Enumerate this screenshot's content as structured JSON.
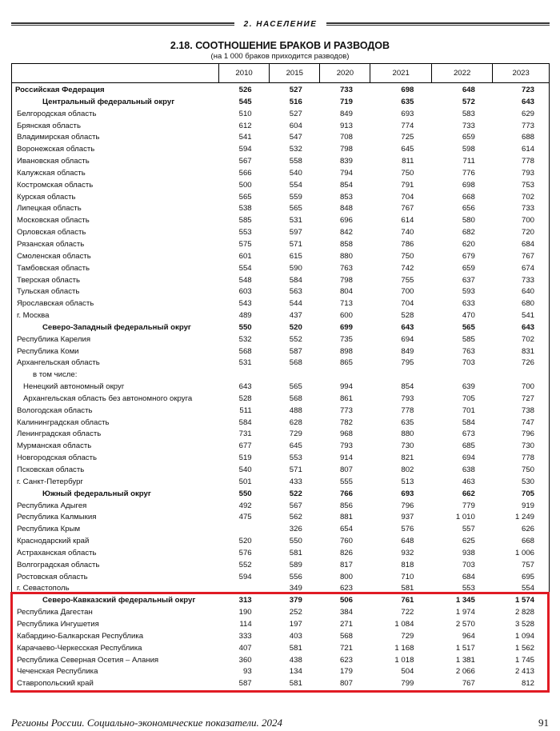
{
  "section": "2. НАСЕЛЕНИЕ",
  "title": "2.18. СООТНОШЕНИЕ БРАКОВ И РАЗВОДОВ",
  "subtitle": "(на 1 000 браков приходится разводов)",
  "columns": [
    "2010",
    "2015",
    "2020",
    "2021",
    "2022",
    "2023"
  ],
  "highlight_color": "#e01b24",
  "rows": [
    {
      "type": "total",
      "label": "Российская Федерация",
      "values": [
        "526",
        "527",
        "733",
        "698",
        "648",
        "723"
      ]
    },
    {
      "type": "district",
      "label": "Центральный федеральный округ",
      "values": [
        "545",
        "516",
        "719",
        "635",
        "572",
        "643"
      ]
    },
    {
      "type": "region",
      "label": "Белгородская область",
      "values": [
        "510",
        "527",
        "849",
        "693",
        "583",
        "629"
      ]
    },
    {
      "type": "region",
      "label": "Брянская область",
      "values": [
        "612",
        "604",
        "913",
        "774",
        "733",
        "773"
      ]
    },
    {
      "type": "region",
      "label": "Владимирская область",
      "values": [
        "541",
        "547",
        "708",
        "725",
        "659",
        "688"
      ]
    },
    {
      "type": "region",
      "label": "Воронежская область",
      "values": [
        "594",
        "532",
        "798",
        "645",
        "598",
        "614"
      ]
    },
    {
      "type": "region",
      "label": "Ивановская область",
      "values": [
        "567",
        "558",
        "839",
        "811",
        "711",
        "778"
      ]
    },
    {
      "type": "region",
      "label": "Калужская область",
      "values": [
        "566",
        "540",
        "794",
        "750",
        "776",
        "793"
      ]
    },
    {
      "type": "region",
      "label": "Костромская область",
      "values": [
        "500",
        "554",
        "854",
        "791",
        "698",
        "753"
      ]
    },
    {
      "type": "region",
      "label": "Курская область",
      "values": [
        "565",
        "559",
        "853",
        "704",
        "668",
        "702"
      ]
    },
    {
      "type": "region",
      "label": "Липецкая область",
      "values": [
        "538",
        "565",
        "848",
        "767",
        "656",
        "733"
      ]
    },
    {
      "type": "region",
      "label": "Московская область",
      "values": [
        "585",
        "531",
        "696",
        "614",
        "580",
        "700"
      ]
    },
    {
      "type": "region",
      "label": "Орловская область",
      "values": [
        "553",
        "597",
        "842",
        "740",
        "682",
        "720"
      ]
    },
    {
      "type": "region",
      "label": "Рязанская область",
      "values": [
        "575",
        "571",
        "858",
        "786",
        "620",
        "684"
      ]
    },
    {
      "type": "region",
      "label": "Смоленская область",
      "values": [
        "601",
        "615",
        "880",
        "750",
        "679",
        "767"
      ]
    },
    {
      "type": "region",
      "label": "Тамбовская область",
      "values": [
        "554",
        "590",
        "763",
        "742",
        "659",
        "674"
      ]
    },
    {
      "type": "region",
      "label": "Тверская область",
      "values": [
        "548",
        "584",
        "798",
        "755",
        "637",
        "733"
      ]
    },
    {
      "type": "region",
      "label": "Тульская область",
      "values": [
        "603",
        "563",
        "804",
        "700",
        "593",
        "640"
      ]
    },
    {
      "type": "region",
      "label": "Ярославская область",
      "values": [
        "543",
        "544",
        "713",
        "704",
        "633",
        "680"
      ]
    },
    {
      "type": "region",
      "label": "г. Москва",
      "values": [
        "489",
        "437",
        "600",
        "528",
        "470",
        "541"
      ]
    },
    {
      "type": "district",
      "label": "Северо-Западный федеральный округ",
      "values": [
        "550",
        "520",
        "699",
        "643",
        "565",
        "643"
      ]
    },
    {
      "type": "region",
      "label": "Республика Карелия",
      "values": [
        "532",
        "552",
        "735",
        "694",
        "585",
        "702"
      ]
    },
    {
      "type": "region",
      "label": "Республика Коми",
      "values": [
        "568",
        "587",
        "898",
        "849",
        "763",
        "831"
      ]
    },
    {
      "type": "region",
      "label": "Архангельская область",
      "values": [
        "531",
        "568",
        "865",
        "795",
        "703",
        "726"
      ]
    },
    {
      "type": "note",
      "label": "в том числе:",
      "values": [
        "",
        "",
        "",
        "",
        "",
        ""
      ]
    },
    {
      "type": "sub",
      "label": "Ненецкий автономный округ",
      "values": [
        "643",
        "565",
        "994",
        "854",
        "639",
        "700"
      ]
    },
    {
      "type": "sub",
      "label": "Архангельская область без автономного округа",
      "values": [
        "528",
        "568",
        "861",
        "793",
        "705",
        "727"
      ]
    },
    {
      "type": "region",
      "label": "Вологодская область",
      "values": [
        "511",
        "488",
        "773",
        "778",
        "701",
        "738"
      ]
    },
    {
      "type": "region",
      "label": "Калининградская область",
      "values": [
        "584",
        "628",
        "782",
        "635",
        "584",
        "747"
      ]
    },
    {
      "type": "region",
      "label": "Ленинградская область",
      "values": [
        "731",
        "729",
        "968",
        "880",
        "673",
        "796"
      ]
    },
    {
      "type": "region",
      "label": "Мурманская область",
      "values": [
        "677",
        "645",
        "793",
        "730",
        "685",
        "730"
      ]
    },
    {
      "type": "region",
      "label": "Новгородская область",
      "values": [
        "519",
        "553",
        "914",
        "821",
        "694",
        "778"
      ]
    },
    {
      "type": "region",
      "label": "Псковская область",
      "values": [
        "540",
        "571",
        "807",
        "802",
        "638",
        "750"
      ]
    },
    {
      "type": "region",
      "label": "г. Санкт-Петербург",
      "values": [
        "501",
        "433",
        "555",
        "513",
        "463",
        "530"
      ]
    },
    {
      "type": "district",
      "label": "Южный федеральный округ",
      "values": [
        "550",
        "522",
        "766",
        "693",
        "662",
        "705"
      ]
    },
    {
      "type": "region",
      "label": "Республика Адыгея",
      "values": [
        "492",
        "567",
        "856",
        "796",
        "779",
        "919"
      ]
    },
    {
      "type": "region",
      "label": "Республика Калмыкия",
      "values": [
        "475",
        "562",
        "881",
        "937",
        "1 010",
        "1 249"
      ]
    },
    {
      "type": "region",
      "label": "Республика Крым",
      "values": [
        "",
        "326",
        "654",
        "576",
        "557",
        "626"
      ]
    },
    {
      "type": "region",
      "label": "Краснодарский край",
      "values": [
        "520",
        "550",
        "760",
        "648",
        "625",
        "668"
      ]
    },
    {
      "type": "region",
      "label": "Астраханская область",
      "values": [
        "576",
        "581",
        "826",
        "932",
        "938",
        "1 006"
      ]
    },
    {
      "type": "region",
      "label": "Волгоградская область",
      "values": [
        "552",
        "589",
        "817",
        "818",
        "703",
        "757"
      ]
    },
    {
      "type": "region",
      "label": "Ростовская область",
      "values": [
        "594",
        "556",
        "800",
        "710",
        "684",
        "695"
      ]
    },
    {
      "type": "region",
      "label": "г. Севастополь",
      "values": [
        "",
        "349",
        "623",
        "581",
        "553",
        "554"
      ]
    },
    {
      "type": "district",
      "label": "Северо-Кавказский федеральный округ",
      "values": [
        "313",
        "379",
        "506",
        "761",
        "1 345",
        "1 574"
      ]
    },
    {
      "type": "region",
      "label": "Республика Дагестан",
      "values": [
        "190",
        "252",
        "384",
        "722",
        "1 974",
        "2 828"
      ]
    },
    {
      "type": "region",
      "label": "Республика Ингушетия",
      "values": [
        "114",
        "197",
        "271",
        "1 084",
        "2 570",
        "3 528"
      ]
    },
    {
      "type": "region",
      "label": "Кабардино-Балкарская Республика",
      "values": [
        "333",
        "403",
        "568",
        "729",
        "964",
        "1 094"
      ]
    },
    {
      "type": "region",
      "label": "Карачаево-Черкесская Республика",
      "values": [
        "407",
        "581",
        "721",
        "1 168",
        "1 517",
        "1 562"
      ]
    },
    {
      "type": "region",
      "label": "Республика Северная Осетия – Алания",
      "values": [
        "360",
        "438",
        "623",
        "1 018",
        "1 381",
        "1 745"
      ]
    },
    {
      "type": "region",
      "label": "Чеченская Республика",
      "values": [
        "93",
        "134",
        "179",
        "504",
        "2 066",
        "2 413"
      ]
    },
    {
      "type": "region",
      "label": "Ставропольский край",
      "values": [
        "587",
        "581",
        "807",
        "799",
        "767",
        "812"
      ]
    }
  ],
  "footer": "Регионы России. Социально-экономические показатели. 2024",
  "page_number": "91"
}
